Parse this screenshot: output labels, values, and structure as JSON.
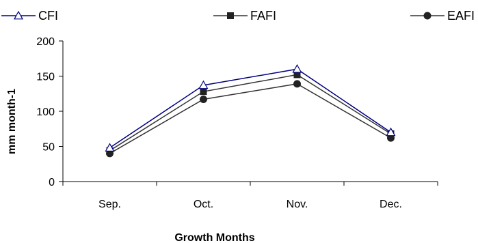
{
  "chart_data": {
    "type": "line",
    "categories": [
      "Sep.",
      "Oct.",
      "Nov.",
      "Dec."
    ],
    "series": [
      {
        "name": "CFI",
        "values": [
          48,
          137,
          160,
          70
        ],
        "marker": "triangle-open",
        "color": "#000080"
      },
      {
        "name": "FAFI",
        "values": [
          44,
          128,
          152,
          68
        ],
        "marker": "square",
        "color": "#333333"
      },
      {
        "name": "EAFI",
        "values": [
          40,
          117,
          139,
          62
        ],
        "marker": "circle",
        "color": "#333333"
      }
    ],
    "title": "",
    "xlabel": "Growth Months",
    "ylabel": "mm  month-1",
    "ylim": [
      0,
      200
    ],
    "yticks": [
      "0",
      "50",
      "100",
      "150",
      "200"
    ],
    "grid": false,
    "legend_position": "top"
  }
}
